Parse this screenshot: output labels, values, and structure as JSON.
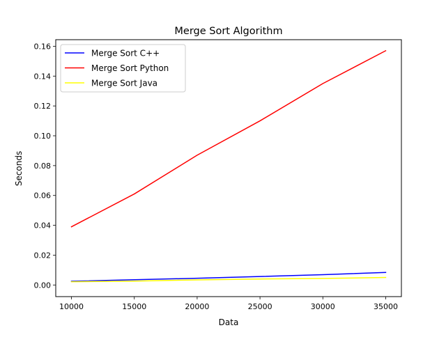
{
  "chart_data": {
    "type": "line",
    "title": "Merge Sort Algorithm",
    "xlabel": "Data",
    "ylabel": "Seconds",
    "x": [
      10000,
      15000,
      20000,
      25000,
      30000,
      35000
    ],
    "xlim": [
      8750,
      36250
    ],
    "ylim": [
      -0.0078,
      0.1644
    ],
    "xticks": [
      10000,
      15000,
      20000,
      25000,
      30000,
      35000
    ],
    "yticks": [
      0.0,
      0.02,
      0.04,
      0.06,
      0.08,
      0.1,
      0.12,
      0.14,
      0.16
    ],
    "ytick_labels": [
      "0.00",
      "0.02",
      "0.04",
      "0.06",
      "0.08",
      "0.10",
      "0.12",
      "0.14",
      "0.16"
    ],
    "grid": false,
    "legend_position": "top-left",
    "series": [
      {
        "name": "Merge Sort C++",
        "color": "#0000ff",
        "values": [
          0.0025,
          0.0035,
          0.0045,
          0.0057,
          0.0069,
          0.0084
        ]
      },
      {
        "name": "Merge Sort Python",
        "color": "#ff0000",
        "values": [
          0.039,
          0.061,
          0.087,
          0.11,
          0.135,
          0.157
        ]
      },
      {
        "name": "Merge Sort Java",
        "color": "#ffff00",
        "values": [
          0.0022,
          0.0026,
          0.0034,
          0.004,
          0.0044,
          0.005
        ]
      }
    ]
  }
}
